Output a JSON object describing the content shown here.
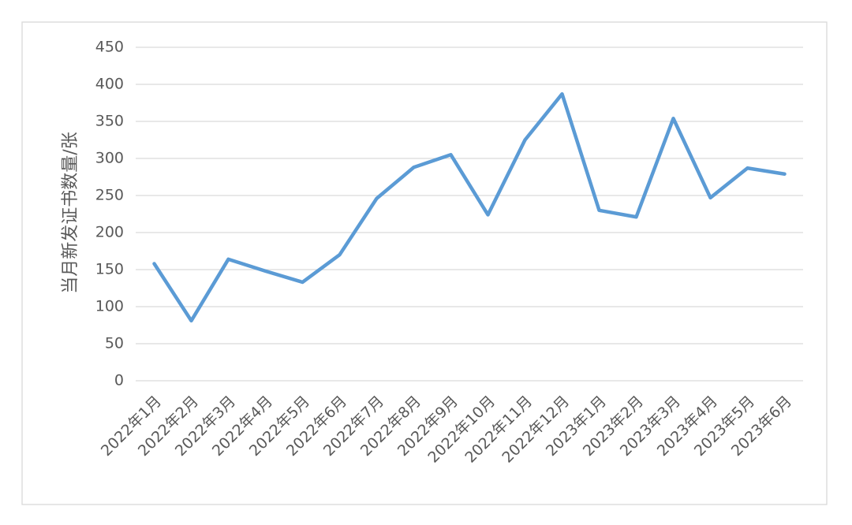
{
  "chart_data": {
    "type": "line",
    "y_label": "当月新发证书数量/张",
    "categories": [
      "2022年1月",
      "2022年2月",
      "2022年3月",
      "2022年4月",
      "2022年5月",
      "2022年6月",
      "2022年7月",
      "2022年8月",
      "2022年9月",
      "2022年10月",
      "2022年11月",
      "2022年12月",
      "2023年1月",
      "2023年2月",
      "2023年3月",
      "2023年4月",
      "2023年5月",
      "2023年6月"
    ],
    "values": [
      158,
      81,
      164,
      148,
      133,
      170,
      246,
      288,
      305,
      224,
      325,
      387,
      230,
      221,
      354,
      247,
      287,
      279
    ],
    "color": "#5b9bd5",
    "ylim": [
      0,
      450
    ],
    "yticks": [
      0,
      50,
      100,
      150,
      200,
      250,
      300,
      350,
      400,
      450
    ],
    "grid": true
  }
}
